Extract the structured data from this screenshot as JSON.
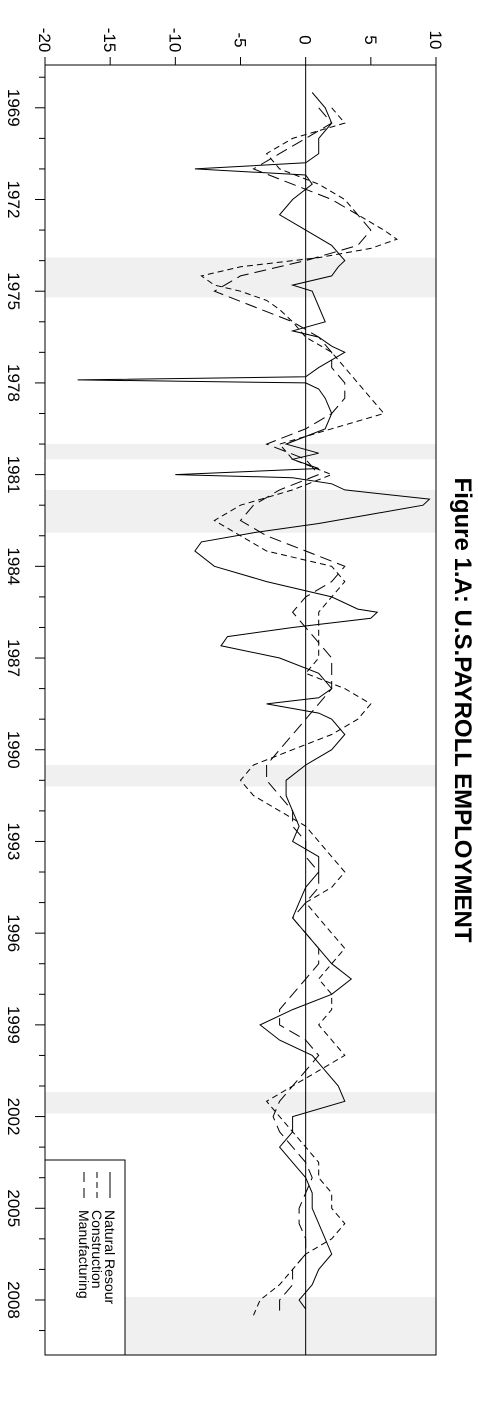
{
  "chart_data": {
    "type": "line",
    "title": "Figure 1.A: U.S.PAYROLL EMPLOYMENT",
    "x_ticks": [
      1969,
      1972,
      1975,
      1978,
      1981,
      1984,
      1987,
      1990,
      1993,
      1996,
      1999,
      2002,
      2005,
      2008
    ],
    "y_ticks": [
      -20,
      -15,
      -10,
      -5,
      0,
      5,
      10
    ],
    "xlim": [
      1967.6,
      2009.8
    ],
    "ylim": [
      -20,
      10
    ],
    "recessions": [
      [
        1973.9,
        1975.2
      ],
      [
        1980.0,
        1980.5
      ],
      [
        1981.5,
        1982.9
      ],
      [
        1990.5,
        1991.2
      ],
      [
        2001.2,
        2001.9
      ],
      [
        2007.9,
        2009.8
      ]
    ],
    "zero_line": 0,
    "series": [
      {
        "name": "Natural Resour",
        "style": "solid",
        "x": [
          1968.5,
          1969.0,
          1969.5,
          1970.0,
          1970.5,
          1970.8,
          1971.0,
          1971.2,
          1971.5,
          1972.0,
          1972.5,
          1973.0,
          1973.5,
          1974.0,
          1974.2,
          1974.5,
          1974.8,
          1975.0,
          1975.5,
          1976.0,
          1976.3,
          1976.5,
          1976.8,
          1977.0,
          1977.5,
          1977.8,
          1977.9,
          1978.0,
          1978.2,
          1978.5,
          1979.0,
          1979.5,
          1980.0,
          1980.3,
          1980.5,
          1980.8,
          1981.0,
          1981.1,
          1981.3,
          1981.5,
          1981.8,
          1982.0,
          1982.3,
          1982.6,
          1982.9,
          1983.2,
          1983.5,
          1984.0,
          1984.5,
          1985.0,
          1985.4,
          1985.5,
          1985.7,
          1986.0,
          1986.3,
          1986.6,
          1987.0,
          1987.5,
          1988.0,
          1988.3,
          1988.5,
          1988.8,
          1989.0,
          1989.5,
          1990.0,
          1990.5,
          1991.0,
          1991.5,
          1992.0,
          1992.5,
          1993.0,
          1993.5,
          1994.0,
          1994.5,
          1995.0,
          1995.5,
          1996.0,
          1996.5,
          1997.0,
          1997.5,
          1998.0,
          1998.5,
          1999.0,
          1999.5,
          2000.0,
          2000.5,
          2001.0,
          2001.5,
          2002.0,
          2002.5,
          2003.0,
          2003.5,
          2004.0,
          2004.5,
          2005.0,
          2005.5,
          2006.0,
          2006.5,
          2007.0,
          2007.5,
          2008.0,
          2008.3
        ],
        "y": [
          0.5,
          1.5,
          2.0,
          1.0,
          1.0,
          0,
          -8.5,
          0,
          0.5,
          -1.0,
          -2.0,
          0,
          2.0,
          3.0,
          2.5,
          2.0,
          -1.0,
          0.5,
          1.0,
          1.5,
          -1.0,
          1.0,
          2.0,
          3.0,
          1.0,
          0,
          -17.5,
          0,
          1.0,
          1.5,
          2.0,
          1.5,
          -1.5,
          1.0,
          -1.0,
          1.0,
          -10.0,
          -1.0,
          2.0,
          3.0,
          9.5,
          9.0,
          5.0,
          1.0,
          -4.0,
          -8.0,
          -8.5,
          -7.0,
          -3.0,
          2.0,
          4.0,
          5.5,
          5.0,
          -1.0,
          -6.0,
          -6.5,
          -2.0,
          1.0,
          2.0,
          1.0,
          -3.0,
          1.0,
          2.0,
          3.0,
          2.0,
          0,
          -1.5,
          -1.5,
          -1.0,
          -0.5,
          -1.0,
          1.0,
          1.0,
          0,
          -0.5,
          -1.0,
          0,
          1.0,
          2.0,
          3.5,
          2.0,
          -1.0,
          -3.5,
          -2.0,
          0.5,
          1.5,
          2.5,
          3.0,
          -1.0,
          -1.0,
          -2.0,
          -1.0,
          0,
          0.5,
          0.5,
          1.0,
          1.5,
          2.0,
          1.0,
          0.5,
          -0.5,
          0
        ],
        "color": "#000000"
      },
      {
        "name": "Construction",
        "style": "dashed",
        "x": [
          1969.0,
          1969.5,
          1970.0,
          1970.5,
          1971.0,
          1971.5,
          1972.0,
          1972.5,
          1973.0,
          1973.3,
          1973.6,
          1973.9,
          1974.2,
          1974.5,
          1974.8,
          1975.0,
          1975.3,
          1975.6,
          1976.0,
          1976.5,
          1977.0,
          1977.5,
          1978.0,
          1978.5,
          1979.0,
          1979.5,
          1980.0,
          1980.5,
          1981.0,
          1981.5,
          1982.0,
          1982.5,
          1983.0,
          1983.5,
          1984.0,
          1984.5,
          1985.0,
          1985.5,
          1986.0,
          1986.5,
          1987.0,
          1987.5,
          1988.0,
          1988.5,
          1989.0,
          1989.5,
          1990.0,
          1990.5,
          1991.0,
          1991.5,
          1992.0,
          1992.5,
          1993.0,
          1993.5,
          1994.0,
          1994.5,
          1995.0,
          1995.5,
          1996.0,
          1996.5,
          1997.0,
          1997.5,
          1998.0,
          1998.5,
          1999.0,
          1999.5,
          2000.0,
          2000.5,
          2001.0,
          2001.5,
          2002.0,
          2002.5,
          2003.0,
          2003.5,
          2004.0,
          2004.5,
          2005.0,
          2005.5,
          2006.0,
          2006.5,
          2007.0,
          2007.5,
          2008.0,
          2008.5
        ],
        "y": [
          2.0,
          3.0,
          -1.0,
          -3.0,
          -2.0,
          1.0,
          3.0,
          4.0,
          6.0,
          7.0,
          5.0,
          1.0,
          -5.0,
          -8.0,
          -7.0,
          -5.0,
          -3.0,
          -2.0,
          -1.0,
          0,
          2.0,
          3.0,
          4.0,
          5.0,
          6.0,
          2.0,
          -2.0,
          -1.0,
          2.0,
          -1.0,
          -5.0,
          -7.0,
          -5.0,
          -3.0,
          2.0,
          3.0,
          2.0,
          1.0,
          1.0,
          1.0,
          1.0,
          0,
          3.0,
          5.0,
          4.0,
          2.0,
          -1.0,
          -4.0,
          -5.0,
          -4.0,
          -2.0,
          0,
          1.0,
          2.0,
          3.0,
          2.0,
          0,
          1.0,
          2.0,
          3.0,
          2.0,
          1.0,
          2.0,
          2.0,
          1.0,
          2.0,
          3.0,
          1.0,
          -1.0,
          -3.0,
          -2.0,
          -1.0,
          0,
          1.0,
          1.0,
          2.0,
          2.0,
          3.0,
          2.0,
          0,
          -1.0,
          -2.0,
          -3.5,
          -4.0
        ],
        "color": "#000000"
      },
      {
        "name": "Manufacturing",
        "style": "longdash",
        "x": [
          1969.0,
          1969.5,
          1970.0,
          1970.5,
          1971.0,
          1971.5,
          1972.0,
          1972.5,
          1973.0,
          1973.5,
          1974.0,
          1974.5,
          1975.0,
          1975.5,
          1976.0,
          1976.5,
          1977.0,
          1977.5,
          1978.0,
          1978.5,
          1979.0,
          1979.5,
          1980.0,
          1980.5,
          1981.0,
          1981.5,
          1982.0,
          1982.5,
          1983.0,
          1983.5,
          1984.0,
          1984.5,
          1985.0,
          1985.5,
          1986.0,
          1986.5,
          1987.0,
          1987.5,
          1988.0,
          1988.5,
          1989.0,
          1989.5,
          1990.0,
          1990.5,
          1991.0,
          1991.5,
          1992.0,
          1992.5,
          1993.0,
          1993.5,
          1994.0,
          1994.5,
          1995.0,
          1995.5,
          1996.0,
          1996.5,
          1997.0,
          1997.5,
          1998.0,
          1998.5,
          1999.0,
          1999.5,
          2000.0,
          2000.5,
          2001.0,
          2001.5,
          2002.0,
          2002.5,
          2003.0,
          2003.5,
          2004.0,
          2004.5,
          2005.0,
          2005.5,
          2006.0,
          2006.5,
          2007.0,
          2007.5,
          2008.0,
          2008.5
        ],
        "y": [
          1.0,
          2.0,
          0,
          -2.0,
          -4.0,
          -1.0,
          2.0,
          4.0,
          5.0,
          4.0,
          0,
          -5.0,
          -7.0,
          -4.0,
          -1.0,
          1.0,
          2.0,
          2.0,
          3.0,
          3.0,
          2.0,
          0,
          -3.0,
          0,
          1.0,
          -2.0,
          -4.0,
          -5.0,
          -3.0,
          0,
          3.0,
          2.0,
          0,
          -1.0,
          0,
          1.0,
          2.0,
          2.0,
          2.0,
          1.0,
          0,
          -1.0,
          -2.0,
          -3.0,
          -3.0,
          -2.0,
          -1.0,
          -1.0,
          0,
          0,
          1.0,
          1.0,
          0,
          -1.0,
          0,
          1.0,
          1.0,
          0,
          -1.0,
          -2.0,
          -2.0,
          0,
          1.0,
          0,
          -1.0,
          -2.0,
          -2.5,
          -2.0,
          -1.0,
          0,
          0.5,
          0,
          -0.5,
          -0.5,
          0,
          0,
          -1.0,
          -1.0,
          -2.0,
          -2.0
        ],
        "color": "#000000"
      }
    ],
    "legend": {
      "position": "bottom-left",
      "entries": [
        "Natural Resour",
        "Construction",
        "Manufacturing"
      ]
    }
  }
}
